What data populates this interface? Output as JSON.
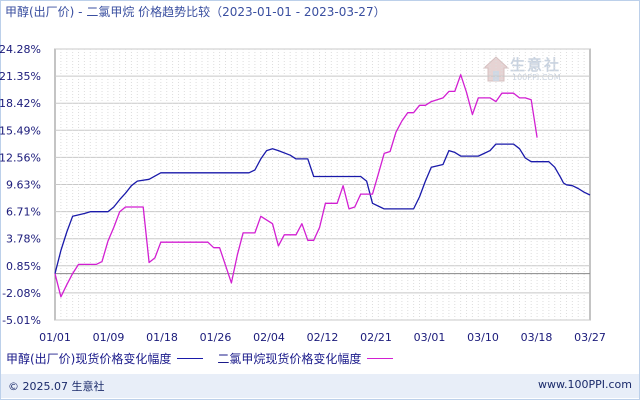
{
  "title": "甲醇(出厂价) - 二氯甲烷 价格趋势比较（2023-01-01 - 2023-03-27）",
  "watermark": {
    "name": "生意社",
    "url": "100PPI.COM"
  },
  "legend": [
    {
      "label": "甲醇(出厂价)现货价格变化幅度",
      "color": "#1a1aaa"
    },
    {
      "label": "二氯甲烷现货价格变化幅度",
      "color": "#d21fd2"
    }
  ],
  "footer": {
    "left": "© 2025.07 生意社",
    "right": "www.100PPI.com"
  },
  "colors": {
    "grid": "#c8c8c8",
    "axis": "#888888",
    "tick_text": "#1a1a7a",
    "zero": "#888888"
  },
  "chart_data": {
    "type": "line",
    "title": "甲醇(出厂价) - 二氯甲烷 价格趋势比较（2023-01-01 - 2023-03-27）",
    "x_tick_labels": [
      "01/01",
      "01/09",
      "01/18",
      "01/26",
      "02/04",
      "02/12",
      "02/21",
      "03/01",
      "03/10",
      "03/18",
      "03/27"
    ],
    "y_tick_labels": [
      "24.28%",
      "21.35%",
      "18.42%",
      "15.49%",
      "12.56%",
      "9.63%",
      "6.71%",
      "3.78%",
      "0.85%",
      "-2.08%",
      "-5.01%"
    ],
    "ylim": [
      -5.01,
      24.28
    ],
    "xlim_days": [
      0,
      85
    ],
    "grid": true,
    "series": [
      {
        "name": "甲醇(出厂价)现货价格变化幅度",
        "color": "#1a1aaa",
        "points": [
          [
            0,
            0
          ],
          [
            1,
            2.5
          ],
          [
            2,
            4.5
          ],
          [
            3,
            6.2
          ],
          [
            5,
            6.5
          ],
          [
            6,
            6.7
          ],
          [
            9,
            6.7
          ],
          [
            10,
            7.2
          ],
          [
            11,
            8.0
          ],
          [
            12,
            8.7
          ],
          [
            13,
            9.5
          ],
          [
            14,
            10.0
          ],
          [
            16,
            10.2
          ],
          [
            18,
            10.9
          ],
          [
            20,
            10.9
          ],
          [
            33,
            10.9
          ],
          [
            34,
            11.2
          ],
          [
            35,
            12.4
          ],
          [
            36,
            13.3
          ],
          [
            37,
            13.5
          ],
          [
            38,
            13.3
          ],
          [
            40,
            12.8
          ],
          [
            41,
            12.4
          ],
          [
            43,
            12.4
          ],
          [
            44,
            10.5
          ],
          [
            52,
            10.5
          ],
          [
            53,
            10.0
          ],
          [
            54,
            7.6
          ],
          [
            56,
            7.0
          ],
          [
            58,
            7.0
          ],
          [
            61,
            7.0
          ],
          [
            62,
            8.3
          ],
          [
            63,
            10.0
          ],
          [
            64,
            11.5
          ],
          [
            66,
            11.8
          ],
          [
            67,
            13.3
          ],
          [
            68,
            13.1
          ],
          [
            69,
            12.7
          ],
          [
            72,
            12.7
          ],
          [
            73,
            13.0
          ],
          [
            74,
            13.3
          ],
          [
            75,
            14.0
          ],
          [
            77,
            14.0
          ],
          [
            78,
            14.0
          ],
          [
            79,
            13.5
          ],
          [
            80,
            12.5
          ],
          [
            81,
            12.1
          ],
          [
            82,
            12.1
          ],
          [
            84,
            12.1
          ],
          [
            85,
            11.5
          ],
          [
            86,
            10.4
          ],
          [
            86.5,
            9.8
          ],
          [
            87,
            9.6
          ],
          [
            88,
            9.5
          ],
          [
            89,
            9.2
          ],
          [
            90,
            8.8
          ],
          [
            91,
            8.5
          ]
        ]
      },
      {
        "name": "二氯甲烷现货价格变化幅度",
        "color": "#d21fd2",
        "points": [
          [
            0,
            0
          ],
          [
            1,
            -2.5
          ],
          [
            2,
            -1.2
          ],
          [
            3,
            0
          ],
          [
            4,
            1.0
          ],
          [
            7,
            1.0
          ],
          [
            8,
            1.3
          ],
          [
            9,
            3.5
          ],
          [
            10,
            5.0
          ],
          [
            11,
            6.7
          ],
          [
            12,
            7.2
          ],
          [
            14,
            7.2
          ],
          [
            15,
            7.2
          ],
          [
            16,
            1.2
          ],
          [
            17,
            1.7
          ],
          [
            18,
            3.4
          ],
          [
            19,
            3.4
          ],
          [
            26,
            3.4
          ],
          [
            27,
            2.8
          ],
          [
            28,
            2.8
          ],
          [
            29,
            0.9
          ],
          [
            30,
            -1.0
          ],
          [
            31,
            2.0
          ],
          [
            32,
            4.4
          ],
          [
            34,
            4.4
          ],
          [
            35,
            6.2
          ],
          [
            37,
            5.4
          ],
          [
            38,
            3.0
          ],
          [
            39,
            4.2
          ],
          [
            41,
            4.2
          ],
          [
            42,
            5.4
          ],
          [
            43,
            3.6
          ],
          [
            44,
            3.6
          ],
          [
            45,
            5.0
          ],
          [
            46,
            7.6
          ],
          [
            48,
            7.6
          ],
          [
            49,
            9.5
          ],
          [
            50,
            7.0
          ],
          [
            51,
            7.2
          ],
          [
            52,
            8.6
          ],
          [
            54,
            8.6
          ],
          [
            55,
            10.8
          ],
          [
            56,
            13.0
          ],
          [
            57,
            13.2
          ],
          [
            58,
            15.3
          ],
          [
            59,
            16.5
          ],
          [
            60,
            17.4
          ],
          [
            61,
            17.4
          ],
          [
            62,
            18.2
          ],
          [
            63,
            18.2
          ],
          [
            64,
            18.6
          ],
          [
            66,
            19.0
          ],
          [
            67,
            19.7
          ],
          [
            68,
            19.7
          ],
          [
            69,
            21.5
          ],
          [
            70,
            19.6
          ],
          [
            71,
            17.2
          ],
          [
            72,
            19.0
          ],
          [
            74,
            19.0
          ],
          [
            75,
            18.6
          ],
          [
            76,
            19.5
          ],
          [
            78,
            19.5
          ],
          [
            79,
            19.0
          ],
          [
            80,
            19.0
          ],
          [
            81,
            18.8
          ],
          [
            82,
            14.7
          ]
        ]
      }
    ]
  }
}
